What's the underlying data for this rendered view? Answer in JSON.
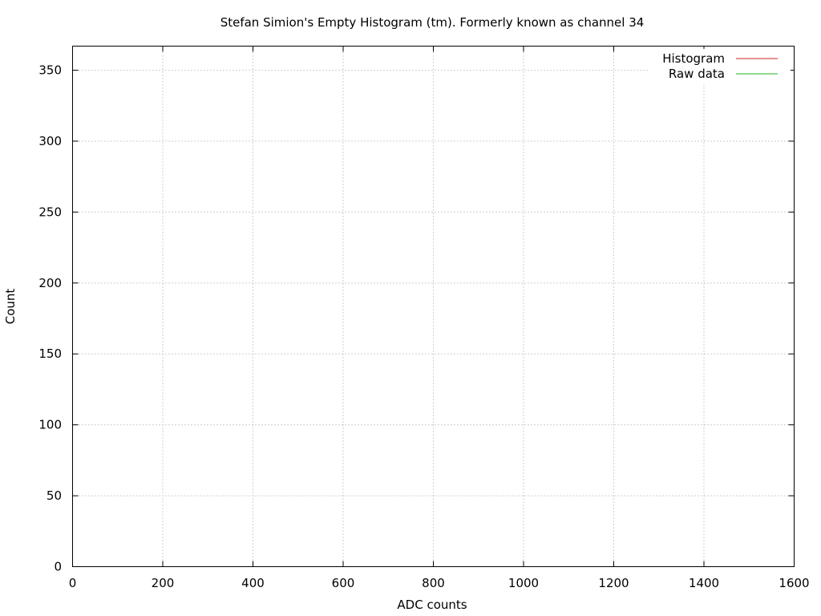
{
  "chart_data": {
    "type": "line",
    "title": "Stefan Simion's Empty Histogram (tm). Formerly known as channel 34",
    "xlabel": "ADC counts",
    "ylabel": "Count",
    "xlim": [
      0,
      1600
    ],
    "ylim": [
      0,
      367
    ],
    "xticks": [
      "0",
      "200",
      "400",
      "600",
      "800",
      "1000",
      "1200",
      "1400",
      "1600"
    ],
    "yticks": [
      "0",
      "50",
      "100",
      "150",
      "200",
      "250",
      "300",
      "350"
    ],
    "grid": true,
    "grid_style": "dotted",
    "legend_position": "top-right",
    "series": [
      {
        "name": "Histogram",
        "color": "#d22020",
        "x": [],
        "y": []
      },
      {
        "name": "Raw data",
        "color": "#20b020",
        "x": [],
        "y": []
      }
    ]
  }
}
